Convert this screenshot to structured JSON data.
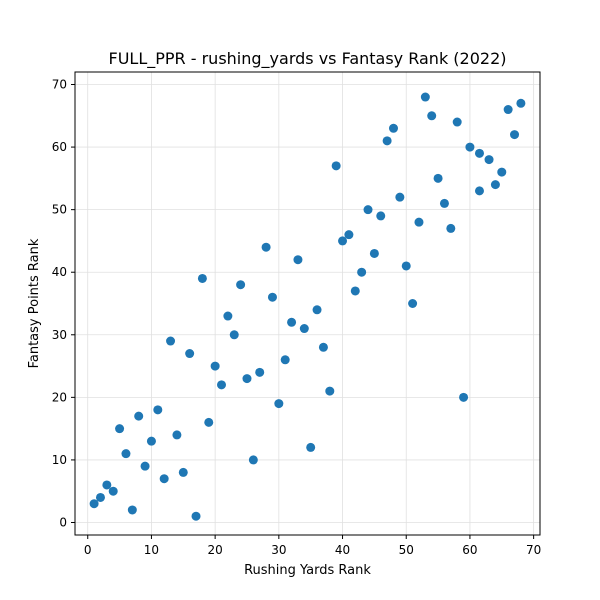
{
  "chart_data": {
    "type": "scatter",
    "title": "FULL_PPR - rushing_yards vs Fantasy Rank (2022)",
    "xlabel": "Rushing Yards Rank",
    "ylabel": "Fantasy Points Rank",
    "xlim": [
      -2,
      71
    ],
    "ylim": [
      -2,
      72
    ],
    "xticks": [
      0,
      10,
      20,
      30,
      40,
      50,
      60,
      70
    ],
    "yticks": [
      0,
      10,
      20,
      30,
      40,
      50,
      60,
      70
    ],
    "grid": true,
    "point_color": "#1f77b4",
    "points": [
      [
        1,
        3
      ],
      [
        2,
        4
      ],
      [
        3,
        6
      ],
      [
        4,
        5
      ],
      [
        5,
        15
      ],
      [
        6,
        11
      ],
      [
        7,
        2
      ],
      [
        8,
        17
      ],
      [
        9,
        9
      ],
      [
        10,
        13
      ],
      [
        11,
        18
      ],
      [
        12,
        7
      ],
      [
        13,
        29
      ],
      [
        14,
        14
      ],
      [
        15,
        8
      ],
      [
        16,
        27
      ],
      [
        17,
        1
      ],
      [
        18,
        39
      ],
      [
        19,
        16
      ],
      [
        20,
        25
      ],
      [
        21,
        22
      ],
      [
        22,
        33
      ],
      [
        23,
        30
      ],
      [
        24,
        38
      ],
      [
        25,
        23
      ],
      [
        26,
        10
      ],
      [
        27,
        24
      ],
      [
        28,
        44
      ],
      [
        29,
        36
      ],
      [
        30,
        19
      ],
      [
        31,
        26
      ],
      [
        32,
        32
      ],
      [
        33,
        42
      ],
      [
        34,
        31
      ],
      [
        35,
        12
      ],
      [
        36,
        34
      ],
      [
        37,
        28
      ],
      [
        38,
        21
      ],
      [
        39,
        57
      ],
      [
        40,
        45
      ],
      [
        41,
        46
      ],
      [
        42,
        37
      ],
      [
        43,
        40
      ],
      [
        44,
        50
      ],
      [
        45,
        43
      ],
      [
        46,
        49
      ],
      [
        47,
        61
      ],
      [
        48,
        63
      ],
      [
        49,
        52
      ],
      [
        50,
        41
      ],
      [
        51,
        35
      ],
      [
        52,
        48
      ],
      [
        53,
        68
      ],
      [
        54,
        65
      ],
      [
        55,
        55
      ],
      [
        56,
        51
      ],
      [
        57,
        47
      ],
      [
        58,
        64
      ],
      [
        59,
        20
      ],
      [
        60,
        60
      ],
      [
        61.5,
        59
      ],
      [
        61.5,
        53
      ],
      [
        63,
        58
      ],
      [
        64,
        54
      ],
      [
        65,
        56
      ],
      [
        66,
        66
      ],
      [
        67,
        62
      ],
      [
        68,
        67
      ]
    ]
  }
}
